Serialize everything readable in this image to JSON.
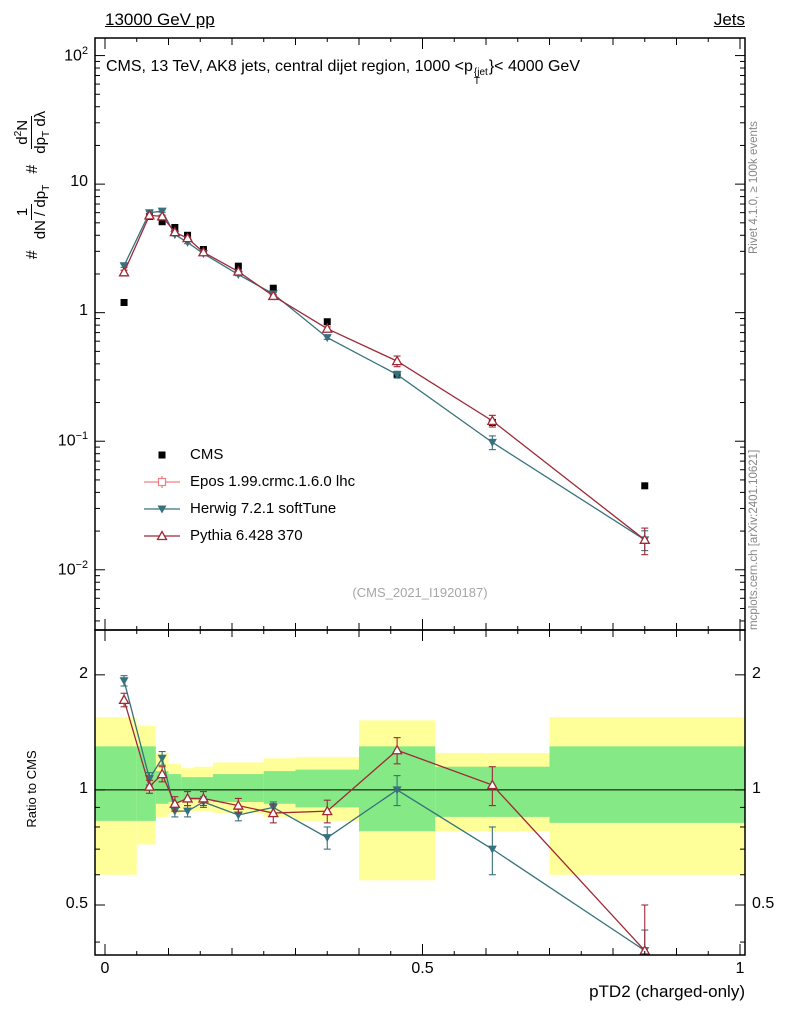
{
  "header": {
    "left": "13000 GeV pp",
    "right": "Jets"
  },
  "main_plot": {
    "title_html": "CMS, 13 TeV, AK8 jets, central dijet region, 1000 &lt;p<span class=\"stack\"><span>{jet</span><span>T</span></span>}&lt; 4000 GeV",
    "y_label": {
      "hash1": "#",
      "frac1_num": "1",
      "frac1_den": "dN / dp<sub>T</sub>",
      "hash2": "#",
      "frac2_num": "d<sup>2</sup>N",
      "frac2_den": "dp<sub>T</sub> d&lambda;"
    },
    "y_ticks": [
      {
        "v": 100,
        "html": "10<sup>2</sup>"
      },
      {
        "v": 10,
        "html": "10"
      },
      {
        "v": 1,
        "html": "1"
      },
      {
        "v": 0.1,
        "html": "10<sup>&#8722;1</sup>"
      },
      {
        "v": 0.01,
        "html": "10<sup>&#8722;2</sup>"
      }
    ],
    "watermark": "(CMS_2021_I1920187)"
  },
  "ratio_plot": {
    "y_label": "Ratio to CMS",
    "x_label": "pTD2 (charged-only)",
    "y_ticks": [
      {
        "v": 2,
        "label": "2"
      },
      {
        "v": 1,
        "label": "1"
      },
      {
        "v": 0.5,
        "label": "0.5"
      }
    ],
    "x_ticks": [
      {
        "v": 0,
        "label": "0"
      },
      {
        "v": 0.5,
        "label": "0.5"
      },
      {
        "v": 1,
        "label": "1"
      }
    ]
  },
  "side_labels": {
    "rivet": "Rivet 4.1.0, ≥ 100k events",
    "mcplots": "mcplots.cern.ch [arXiv:2401.10621]"
  },
  "chart_data": {
    "type": "line",
    "title": "CMS, 13 TeV, AK8 jets, central dijet region, 1000 < pT{jet} < 4000 GeV",
    "xlabel": "pTD2 (charged-only)",
    "ylabel": "1/(dN/dpT) d2N/(dpT dlambda)",
    "ratio_ylabel": "Ratio to CMS",
    "x_lim": [
      0,
      1
    ],
    "main_ylim": [
      0.0034,
      137
    ],
    "ratio_ylim": [
      0.37,
      2.62
    ],
    "x": [
      0.03,
      0.07,
      0.09,
      0.11,
      0.13,
      0.155,
      0.21,
      0.265,
      0.35,
      0.46,
      0.61,
      0.85
    ],
    "series": [
      {
        "name": "CMS",
        "color": "#000000",
        "marker": "square-filled",
        "line": false,
        "legend": "marker",
        "values": [
          1.2,
          5.6,
          5.1,
          4.6,
          4.0,
          3.1,
          2.3,
          1.55,
          0.85,
          0.33,
          0.14,
          0.045
        ]
      },
      {
        "name": "Epos 1.99.crmc.1.6.0 lhc",
        "color": "#f08080",
        "marker": "square-open",
        "line": true,
        "legend": "cross",
        "values": []
      },
      {
        "name": "Herwig 7.2.1 softTune",
        "color": "#37717e",
        "marker": "triangle-down-filled",
        "line": true,
        "legend": "line",
        "values": [
          2.32,
          5.99,
          6.17,
          4.05,
          3.52,
          2.88,
          1.98,
          1.4,
          0.64,
          0.33,
          0.098,
          0.0171
        ],
        "yerr": [
          0.07,
          0.12,
          0.13,
          0.09,
          0.08,
          0.06,
          0.04,
          0.03,
          0.02,
          0.02,
          0.012,
          0.003
        ],
        "ratio": [
          1.93,
          1.07,
          1.21,
          0.88,
          0.88,
          0.93,
          0.86,
          0.9,
          0.75,
          1.0,
          0.7,
          0.38
        ],
        "ratio_err": [
          0.06,
          0.04,
          0.05,
          0.03,
          0.03,
          0.03,
          0.03,
          0.03,
          0.05,
          0.09,
          0.1,
          0.05
        ]
      },
      {
        "name": "Pythia 6.428 370",
        "color": "#9f2936",
        "marker": "triangle-up-open",
        "line": true,
        "legend": "line",
        "values": [
          2.06,
          5.71,
          5.61,
          4.23,
          3.8,
          2.95,
          2.09,
          1.35,
          0.75,
          0.42,
          0.144,
          0.0171
        ],
        "yerr": [
          0.08,
          0.12,
          0.13,
          0.09,
          0.08,
          0.06,
          0.04,
          0.03,
          0.025,
          0.04,
          0.015,
          0.004
        ],
        "ratio": [
          1.72,
          1.02,
          1.1,
          0.92,
          0.95,
          0.95,
          0.91,
          0.87,
          0.88,
          1.27,
          1.03,
          0.38
        ],
        "ratio_err": [
          0.07,
          0.04,
          0.05,
          0.04,
          0.04,
          0.04,
          0.04,
          0.05,
          0.06,
          0.1,
          0.12,
          0.12
        ]
      }
    ],
    "bands": {
      "bins": [
        [
          0,
          0.05
        ],
        [
          0.05,
          0.08
        ],
        [
          0.08,
          0.1
        ],
        [
          0.1,
          0.12
        ],
        [
          0.12,
          0.14
        ],
        [
          0.14,
          0.17
        ],
        [
          0.17,
          0.25
        ],
        [
          0.25,
          0.3
        ],
        [
          0.3,
          0.4
        ],
        [
          0.4,
          0.52
        ],
        [
          0.52,
          0.7
        ],
        [
          0.7,
          1.0
        ]
      ],
      "yellow": [
        [
          0.6,
          1.55
        ],
        [
          0.72,
          1.47
        ],
        [
          0.85,
          1.25
        ],
        [
          0.87,
          1.17
        ],
        [
          0.88,
          1.14
        ],
        [
          0.88,
          1.15
        ],
        [
          0.87,
          1.18
        ],
        [
          0.85,
          1.21
        ],
        [
          0.83,
          1.22
        ],
        [
          0.58,
          1.52
        ],
        [
          0.78,
          1.25
        ],
        [
          0.6,
          1.55
        ]
      ],
      "green": [
        [
          0.83,
          1.3
        ],
        [
          0.83,
          1.3
        ],
        [
          0.92,
          1.12
        ],
        [
          0.93,
          1.1
        ],
        [
          0.94,
          1.08
        ],
        [
          0.94,
          1.08
        ],
        [
          0.93,
          1.1
        ],
        [
          0.92,
          1.12
        ],
        [
          0.9,
          1.13
        ],
        [
          0.78,
          1.3
        ],
        [
          0.85,
          1.15
        ],
        [
          0.82,
          1.3
        ]
      ],
      "colors": {
        "yellow": "#ffff99",
        "green": "#85e985"
      }
    }
  }
}
